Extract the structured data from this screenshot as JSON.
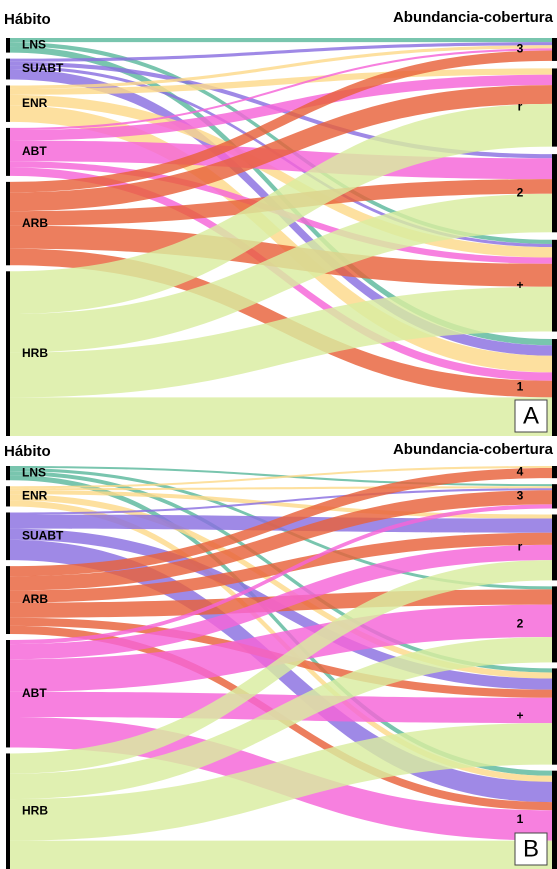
{
  "chart_data": [
    {
      "type": "alluvial",
      "left_title": "Hábito",
      "right_title": "Abundancia-cobertura",
      "panel": "A",
      "categories": [
        "3",
        "r",
        "2",
        "+",
        "1"
      ],
      "series": [
        {
          "name": "LNS",
          "color": "#5bb89c",
          "values": [
            4,
            0,
            0,
            4,
            6
          ]
        },
        {
          "name": "SUABT",
          "color": "#8a6fe0",
          "values": [
            3,
            0,
            4,
            3,
            10
          ]
        },
        {
          "name": "ENR",
          "color": "#fdd98a",
          "values": [
            3,
            6,
            0,
            10,
            16
          ]
        },
        {
          "name": "ABT",
          "color": "#f564d8",
          "values": [
            2,
            10,
            20,
            6,
            8
          ]
        },
        {
          "name": "ARB",
          "color": "#e8623a",
          "values": [
            10,
            18,
            14,
            22,
            16
          ]
        },
        {
          "name": "HRB",
          "color": "#d9eda0",
          "values": [
            0,
            41,
            37,
            43,
            37
          ]
        }
      ]
    },
    {
      "type": "alluvial",
      "left_title": "Hábito",
      "right_title": "Abundancia-cobertura",
      "panel": "B",
      "categories": [
        "4",
        "3",
        "r",
        "2",
        "+",
        "1"
      ],
      "series": [
        {
          "name": "LNS",
          "color": "#5bb89c",
          "values": [
            0,
            2,
            0,
            3,
            4,
            5
          ]
        },
        {
          "name": "ENR",
          "color": "#fdd98a",
          "values": [
            2,
            2,
            4,
            0,
            6,
            6
          ]
        },
        {
          "name": "SUABT",
          "color": "#8a6fe0",
          "values": [
            0,
            2,
            14,
            0,
            11,
            20
          ]
        },
        {
          "name": "ARB",
          "color": "#e8623a",
          "values": [
            10,
            14,
            12,
            15,
            8,
            8
          ]
        },
        {
          "name": "ABT",
          "color": "#f564d8",
          "values": [
            0,
            4,
            15,
            32,
            25,
            30
          ]
        },
        {
          "name": "HRB",
          "color": "#d9eda0",
          "values": [
            0,
            0,
            20,
            25,
            41,
            28
          ]
        }
      ]
    }
  ]
}
